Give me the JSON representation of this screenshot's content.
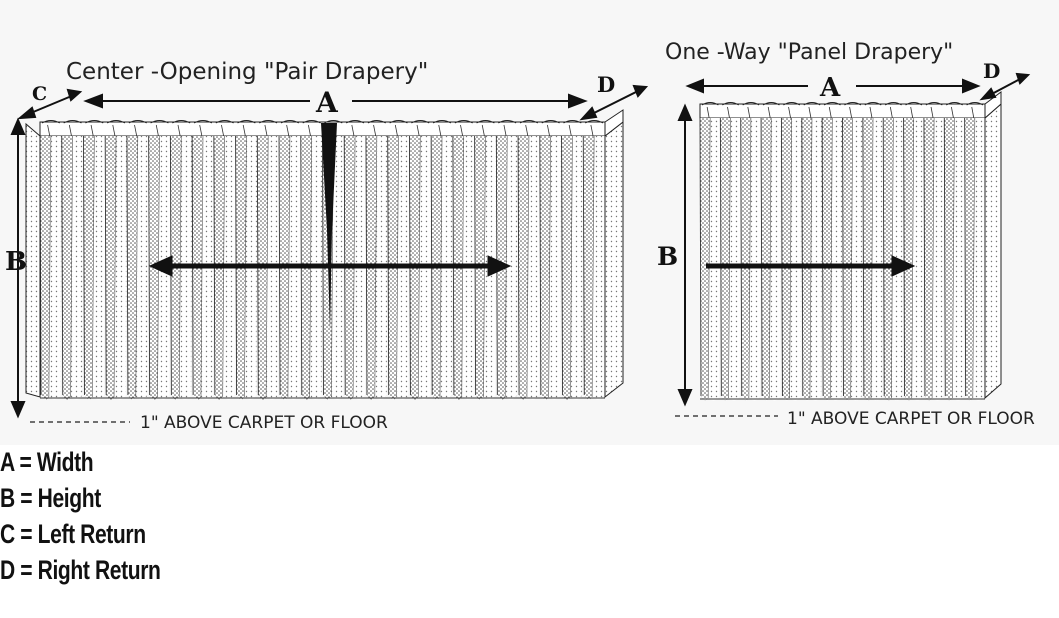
{
  "left_drapery": {
    "title": "Center -Opening \"Pair Drapery\"",
    "label_a": "A",
    "label_b": "B",
    "label_c": "C",
    "label_d": "D",
    "floor_note": "1\" ABOVE CARPET OR FLOOR"
  },
  "right_drapery": {
    "title": "One -Way \"Panel Drapery\"",
    "label_a": "A",
    "label_b": "B",
    "label_d": "D",
    "floor_note": "1\" ABOVE CARPET OR FLOOR"
  },
  "legend": [
    "A = Width",
    "B = Height",
    "C = Left Return",
    "D = Right Return"
  ]
}
